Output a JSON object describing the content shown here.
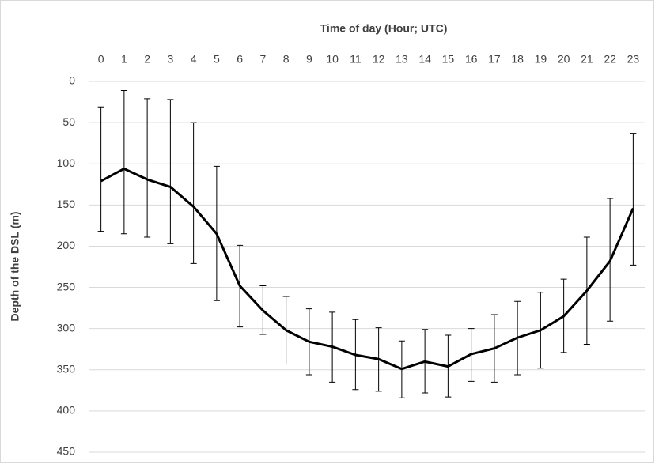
{
  "chart_data": {
    "type": "line",
    "x_title": "Time of day (Hour; UTC)",
    "y_title": "Depth of the DSL (m)",
    "categories": [
      "0",
      "1",
      "2",
      "3",
      "4",
      "5",
      "6",
      "7",
      "8",
      "9",
      "10",
      "11",
      "12",
      "13",
      "14",
      "15",
      "16",
      "17",
      "18",
      "19",
      "20",
      "21",
      "22",
      "23"
    ],
    "values": [
      121,
      106,
      119,
      128,
      152,
      185,
      248,
      278,
      302,
      316,
      322,
      332,
      337,
      349,
      340,
      346,
      331,
      324,
      311,
      302,
      285,
      254,
      218,
      154
    ],
    "error_upper": [
      31,
      11,
      21,
      22,
      50,
      103,
      199,
      248,
      261,
      276,
      280,
      289,
      299,
      315,
      301,
      308,
      300,
      283,
      267,
      256,
      240,
      189,
      142,
      63
    ],
    "error_lower": [
      182,
      185,
      189,
      197,
      221,
      266,
      298,
      307,
      343,
      356,
      365,
      374,
      376,
      384,
      378,
      383,
      364,
      365,
      356,
      348,
      329,
      319,
      291,
      223
    ],
    "color": "#000000",
    "ylim": [
      0,
      450
    ],
    "y_inverted": true,
    "yticks": [
      0,
      50,
      100,
      150,
      200,
      250,
      300,
      350,
      400,
      450
    ],
    "grid": true
  }
}
